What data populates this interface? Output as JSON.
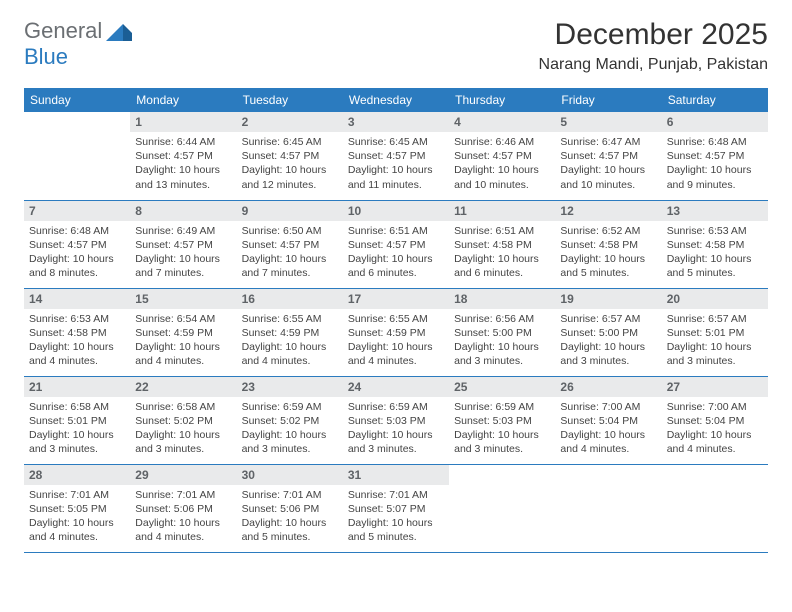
{
  "brand": {
    "a": "General",
    "b": "Blue"
  },
  "title": {
    "month": "December 2025",
    "location": "Narang Mandi, Punjab, Pakistan"
  },
  "colors": {
    "header_bg": "#2b7bbf",
    "daynum_bg": "#e9eaeb",
    "border": "#2b7bbf"
  },
  "day_headers": [
    "Sunday",
    "Monday",
    "Tuesday",
    "Wednesday",
    "Thursday",
    "Friday",
    "Saturday"
  ],
  "weeks": [
    [
      {
        "empty": true
      },
      {
        "n": "1",
        "sr": "Sunrise: 6:44 AM",
        "ss": "Sunset: 4:57 PM",
        "dl": "Daylight: 10 hours and 13 minutes."
      },
      {
        "n": "2",
        "sr": "Sunrise: 6:45 AM",
        "ss": "Sunset: 4:57 PM",
        "dl": "Daylight: 10 hours and 12 minutes."
      },
      {
        "n": "3",
        "sr": "Sunrise: 6:45 AM",
        "ss": "Sunset: 4:57 PM",
        "dl": "Daylight: 10 hours and 11 minutes."
      },
      {
        "n": "4",
        "sr": "Sunrise: 6:46 AM",
        "ss": "Sunset: 4:57 PM",
        "dl": "Daylight: 10 hours and 10 minutes."
      },
      {
        "n": "5",
        "sr": "Sunrise: 6:47 AM",
        "ss": "Sunset: 4:57 PM",
        "dl": "Daylight: 10 hours and 10 minutes."
      },
      {
        "n": "6",
        "sr": "Sunrise: 6:48 AM",
        "ss": "Sunset: 4:57 PM",
        "dl": "Daylight: 10 hours and 9 minutes."
      }
    ],
    [
      {
        "n": "7",
        "sr": "Sunrise: 6:48 AM",
        "ss": "Sunset: 4:57 PM",
        "dl": "Daylight: 10 hours and 8 minutes."
      },
      {
        "n": "8",
        "sr": "Sunrise: 6:49 AM",
        "ss": "Sunset: 4:57 PM",
        "dl": "Daylight: 10 hours and 7 minutes."
      },
      {
        "n": "9",
        "sr": "Sunrise: 6:50 AM",
        "ss": "Sunset: 4:57 PM",
        "dl": "Daylight: 10 hours and 7 minutes."
      },
      {
        "n": "10",
        "sr": "Sunrise: 6:51 AM",
        "ss": "Sunset: 4:57 PM",
        "dl": "Daylight: 10 hours and 6 minutes."
      },
      {
        "n": "11",
        "sr": "Sunrise: 6:51 AM",
        "ss": "Sunset: 4:58 PM",
        "dl": "Daylight: 10 hours and 6 minutes."
      },
      {
        "n": "12",
        "sr": "Sunrise: 6:52 AM",
        "ss": "Sunset: 4:58 PM",
        "dl": "Daylight: 10 hours and 5 minutes."
      },
      {
        "n": "13",
        "sr": "Sunrise: 6:53 AM",
        "ss": "Sunset: 4:58 PM",
        "dl": "Daylight: 10 hours and 5 minutes."
      }
    ],
    [
      {
        "n": "14",
        "sr": "Sunrise: 6:53 AM",
        "ss": "Sunset: 4:58 PM",
        "dl": "Daylight: 10 hours and 4 minutes."
      },
      {
        "n": "15",
        "sr": "Sunrise: 6:54 AM",
        "ss": "Sunset: 4:59 PM",
        "dl": "Daylight: 10 hours and 4 minutes."
      },
      {
        "n": "16",
        "sr": "Sunrise: 6:55 AM",
        "ss": "Sunset: 4:59 PM",
        "dl": "Daylight: 10 hours and 4 minutes."
      },
      {
        "n": "17",
        "sr": "Sunrise: 6:55 AM",
        "ss": "Sunset: 4:59 PM",
        "dl": "Daylight: 10 hours and 4 minutes."
      },
      {
        "n": "18",
        "sr": "Sunrise: 6:56 AM",
        "ss": "Sunset: 5:00 PM",
        "dl": "Daylight: 10 hours and 3 minutes."
      },
      {
        "n": "19",
        "sr": "Sunrise: 6:57 AM",
        "ss": "Sunset: 5:00 PM",
        "dl": "Daylight: 10 hours and 3 minutes."
      },
      {
        "n": "20",
        "sr": "Sunrise: 6:57 AM",
        "ss": "Sunset: 5:01 PM",
        "dl": "Daylight: 10 hours and 3 minutes."
      }
    ],
    [
      {
        "n": "21",
        "sr": "Sunrise: 6:58 AM",
        "ss": "Sunset: 5:01 PM",
        "dl": "Daylight: 10 hours and 3 minutes."
      },
      {
        "n": "22",
        "sr": "Sunrise: 6:58 AM",
        "ss": "Sunset: 5:02 PM",
        "dl": "Daylight: 10 hours and 3 minutes."
      },
      {
        "n": "23",
        "sr": "Sunrise: 6:59 AM",
        "ss": "Sunset: 5:02 PM",
        "dl": "Daylight: 10 hours and 3 minutes."
      },
      {
        "n": "24",
        "sr": "Sunrise: 6:59 AM",
        "ss": "Sunset: 5:03 PM",
        "dl": "Daylight: 10 hours and 3 minutes."
      },
      {
        "n": "25",
        "sr": "Sunrise: 6:59 AM",
        "ss": "Sunset: 5:03 PM",
        "dl": "Daylight: 10 hours and 3 minutes."
      },
      {
        "n": "26",
        "sr": "Sunrise: 7:00 AM",
        "ss": "Sunset: 5:04 PM",
        "dl": "Daylight: 10 hours and 4 minutes."
      },
      {
        "n": "27",
        "sr": "Sunrise: 7:00 AM",
        "ss": "Sunset: 5:04 PM",
        "dl": "Daylight: 10 hours and 4 minutes."
      }
    ],
    [
      {
        "n": "28",
        "sr": "Sunrise: 7:01 AM",
        "ss": "Sunset: 5:05 PM",
        "dl": "Daylight: 10 hours and 4 minutes."
      },
      {
        "n": "29",
        "sr": "Sunrise: 7:01 AM",
        "ss": "Sunset: 5:06 PM",
        "dl": "Daylight: 10 hours and 4 minutes."
      },
      {
        "n": "30",
        "sr": "Sunrise: 7:01 AM",
        "ss": "Sunset: 5:06 PM",
        "dl": "Daylight: 10 hours and 5 minutes."
      },
      {
        "n": "31",
        "sr": "Sunrise: 7:01 AM",
        "ss": "Sunset: 5:07 PM",
        "dl": "Daylight: 10 hours and 5 minutes."
      },
      {
        "empty": true
      },
      {
        "empty": true
      },
      {
        "empty": true
      }
    ]
  ]
}
